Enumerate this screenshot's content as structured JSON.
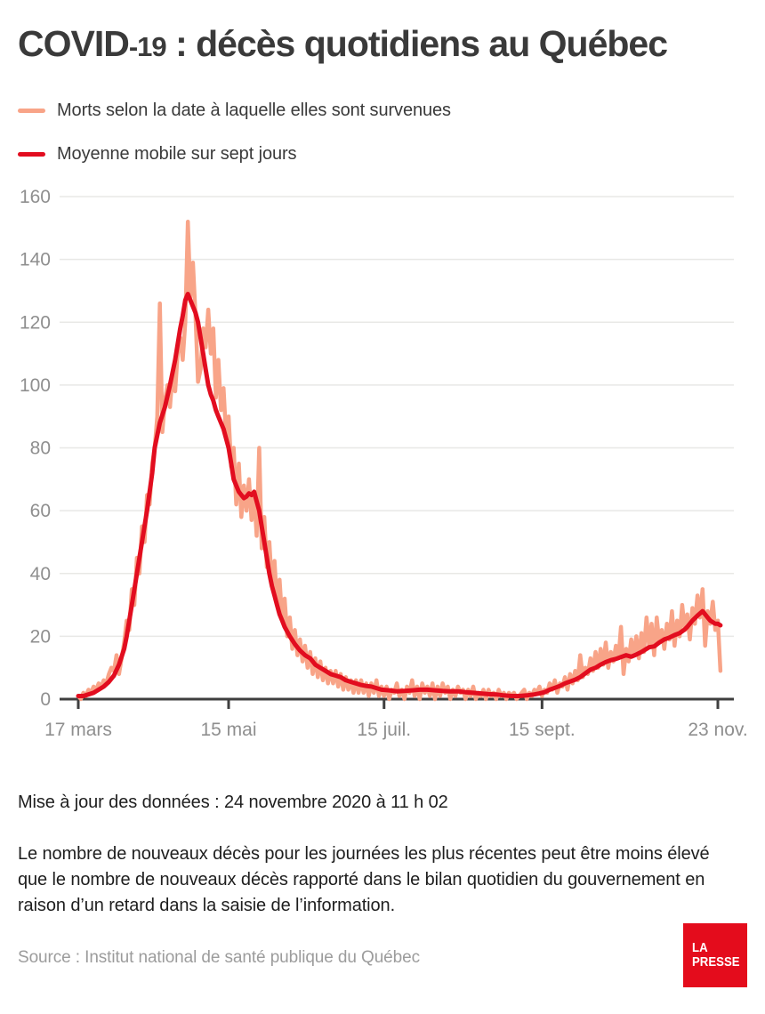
{
  "title": {
    "prefix": "COVID",
    "number": "-19",
    "rest": " : décès quotidiens au Québec"
  },
  "legend": [
    {
      "label": "Morts selon la date à laquelle elles sont survenues",
      "color": "#f8a488"
    },
    {
      "label": "Moyenne mobile sur sept jours",
      "color": "#e20d1f"
    }
  ],
  "footer": {
    "update": "Mise à jour des données : 24 novembre 2020 à 11 h 02",
    "note": "Le nombre de nouveaux décès pour les journées les plus récentes peut être moins élevé que le nombre de nouveaux décès rapporté dans le bilan quotidien du gouvernement en raison d’un retard dans la saisie de l’information.",
    "source": "Source : Institut national de santé publique du Québec"
  },
  "logo": {
    "line1": "LA",
    "line2": "PRESSE",
    "color": "#e40c1c"
  },
  "chart_data": {
    "type": "line",
    "title": "COVID-19 : décès quotidiens au Québec",
    "xlabel": "",
    "ylabel": "décès quotidiens",
    "grid": true,
    "legend_position": "top-left",
    "x_unit": "day_index_from_2020-03-17",
    "x_axis": {
      "tick_labels": [
        "17 mars",
        "15 mai",
        "15 juil.",
        "15 sept.",
        "23 nov."
      ],
      "tick_days": [
        0,
        59,
        120,
        182,
        251
      ],
      "domain_days": [
        0,
        252
      ]
    },
    "y_axis": {
      "min": 0,
      "max": 160,
      "ticks": [
        0,
        20,
        40,
        60,
        80,
        100,
        120,
        140,
        160
      ]
    },
    "colors": {
      "grid": "#e8e8e6",
      "axis": "#3f3f3f",
      "tick_text": "#8f8f8f"
    },
    "series": [
      {
        "name": "Morts selon la date à laquelle elles sont survenues",
        "color": "#f8a488",
        "values_are": "one value per day starting 17 mars 2020",
        "values": [
          1,
          0,
          2,
          1,
          3,
          2,
          4,
          3,
          5,
          4,
          6,
          5,
          8,
          10,
          9,
          14,
          8,
          13,
          18,
          25,
          22,
          35,
          30,
          45,
          40,
          55,
          50,
          65,
          62,
          75,
          80,
          90,
          126,
          85,
          95,
          100,
          93,
          104,
          98,
          110,
          115,
          108,
          120,
          152,
          128,
          139,
          122,
          101,
          105,
          118,
          112,
          124,
          110,
          118,
          96,
          108,
          92,
          99,
          84,
          90,
          74,
          80,
          62,
          75,
          58,
          68,
          60,
          70,
          57,
          66,
          52,
          80,
          48,
          58,
          42,
          50,
          36,
          44,
          30,
          38,
          25,
          32,
          20,
          26,
          16,
          22,
          14,
          19,
          12,
          17,
          10,
          15,
          8,
          13,
          7,
          12,
          6,
          10,
          5,
          9,
          5,
          9,
          4,
          8,
          3,
          7,
          3,
          6,
          2,
          6,
          2,
          6,
          2,
          5,
          1,
          5,
          2,
          6,
          1,
          4,
          1,
          4,
          0,
          3,
          2,
          5,
          1,
          3,
          0,
          4,
          2,
          6,
          1,
          4,
          0,
          5,
          2,
          4,
          1,
          5,
          0,
          4,
          1,
          5,
          2,
          4,
          0,
          3,
          1,
          4,
          2,
          3,
          0,
          3,
          1,
          4,
          0,
          2,
          1,
          3,
          0,
          3,
          1,
          2,
          0,
          3,
          1,
          2,
          0,
          2,
          1,
          2,
          0,
          1,
          2,
          3,
          0,
          2,
          1,
          3,
          2,
          4,
          1,
          3,
          2,
          5,
          3,
          6,
          2,
          5,
          4,
          7,
          3,
          8,
          5,
          9,
          6,
          14,
          7,
          10,
          8,
          13,
          9,
          15,
          10,
          16,
          11,
          18,
          10,
          15,
          12,
          17,
          13,
          23,
          8,
          16,
          12,
          19,
          14,
          20,
          13,
          21,
          15,
          26,
          17,
          24,
          14,
          26,
          18,
          22,
          16,
          24,
          19,
          28,
          17,
          25,
          20,
          30,
          22,
          27,
          19,
          29,
          24,
          33,
          26,
          35,
          17,
          28,
          24,
          31,
          22,
          25,
          9
        ]
      },
      {
        "name": "Moyenne mobile sur sept jours",
        "color": "#e20d1f",
        "points_are": "[day_index, value] control points",
        "points": [
          [
            0,
            1
          ],
          [
            2,
            1
          ],
          [
            4,
            1.5
          ],
          [
            6,
            2
          ],
          [
            8,
            3
          ],
          [
            10,
            4
          ],
          [
            12,
            5.5
          ],
          [
            14,
            7.5
          ],
          [
            16,
            11
          ],
          [
            18,
            16
          ],
          [
            19,
            20
          ],
          [
            21,
            30
          ],
          [
            23,
            40
          ],
          [
            25,
            50
          ],
          [
            27,
            60
          ],
          [
            29,
            72
          ],
          [
            30,
            80
          ],
          [
            32,
            88
          ],
          [
            34,
            93
          ],
          [
            36,
            100
          ],
          [
            38,
            108
          ],
          [
            40,
            118
          ],
          [
            41,
            122
          ],
          [
            42,
            127
          ],
          [
            43,
            129
          ],
          [
            44,
            127
          ],
          [
            45,
            125
          ],
          [
            46,
            123
          ],
          [
            47,
            120
          ],
          [
            48,
            115
          ],
          [
            49,
            110
          ],
          [
            50,
            105
          ],
          [
            51,
            100
          ],
          [
            52,
            97
          ],
          [
            53,
            95
          ],
          [
            54,
            92
          ],
          [
            55,
            90
          ],
          [
            57,
            86
          ],
          [
            59,
            80
          ],
          [
            60,
            75
          ],
          [
            61,
            70
          ],
          [
            62,
            68
          ],
          [
            63,
            66
          ],
          [
            64,
            65
          ],
          [
            65,
            64
          ],
          [
            66,
            64.5
          ],
          [
            67,
            65.5
          ],
          [
            68,
            65
          ],
          [
            69,
            66
          ],
          [
            70,
            63
          ],
          [
            71,
            60
          ],
          [
            72,
            55
          ],
          [
            73,
            50
          ],
          [
            74,
            45
          ],
          [
            75,
            40
          ],
          [
            76,
            36
          ],
          [
            77,
            33
          ],
          [
            78,
            30
          ],
          [
            79,
            27
          ],
          [
            80,
            25
          ],
          [
            81,
            23
          ],
          [
            83,
            20
          ],
          [
            85,
            17.5
          ],
          [
            87,
            15.5
          ],
          [
            89,
            14
          ],
          [
            91,
            13
          ],
          [
            93,
            11
          ],
          [
            95,
            10
          ],
          [
            97,
            9
          ],
          [
            99,
            8
          ],
          [
            101,
            7.5
          ],
          [
            103,
            7
          ],
          [
            105,
            6
          ],
          [
            107,
            5.5
          ],
          [
            109,
            5
          ],
          [
            111,
            4.5
          ],
          [
            113,
            4.2
          ],
          [
            115,
            4
          ],
          [
            117,
            3.5
          ],
          [
            119,
            3
          ],
          [
            122,
            2.8
          ],
          [
            125,
            2.5
          ],
          [
            128,
            2.6
          ],
          [
            131,
            2.8
          ],
          [
            134,
            3
          ],
          [
            137,
            3
          ],
          [
            140,
            2.8
          ],
          [
            143,
            2.6
          ],
          [
            146,
            2.5
          ],
          [
            149,
            2.5
          ],
          [
            152,
            2.2
          ],
          [
            155,
            2
          ],
          [
            158,
            1.8
          ],
          [
            161,
            1.6
          ],
          [
            164,
            1.5
          ],
          [
            167,
            1.2
          ],
          [
            170,
            1
          ],
          [
            173,
            1
          ],
          [
            176,
            1.2
          ],
          [
            179,
            1.5
          ],
          [
            181,
            1.8
          ],
          [
            183,
            2.2
          ],
          [
            185,
            3
          ],
          [
            187,
            3.6
          ],
          [
            189,
            4.2
          ],
          [
            191,
            5
          ],
          [
            193,
            5.6
          ],
          [
            195,
            6.2
          ],
          [
            197,
            7
          ],
          [
            199,
            8.2
          ],
          [
            201,
            9.4
          ],
          [
            203,
            10
          ],
          [
            205,
            11
          ],
          [
            207,
            11.8
          ],
          [
            209,
            12.4
          ],
          [
            211,
            12.8
          ],
          [
            213,
            13.4
          ],
          [
            215,
            14
          ],
          [
            217,
            13.5
          ],
          [
            219,
            14.2
          ],
          [
            221,
            15
          ],
          [
            223,
            16
          ],
          [
            224,
            16.5
          ],
          [
            226,
            16.8
          ],
          [
            228,
            18
          ],
          [
            230,
            19
          ],
          [
            232,
            19.6
          ],
          [
            234,
            20.4
          ],
          [
            236,
            21
          ],
          [
            238,
            22.2
          ],
          [
            239,
            23
          ],
          [
            241,
            25
          ],
          [
            243,
            26.6
          ],
          [
            245,
            28
          ],
          [
            246,
            27
          ],
          [
            247,
            26
          ],
          [
            248,
            25
          ],
          [
            249,
            24.5
          ],
          [
            250,
            24
          ],
          [
            251,
            24
          ],
          [
            252,
            23.5
          ]
        ]
      }
    ]
  }
}
